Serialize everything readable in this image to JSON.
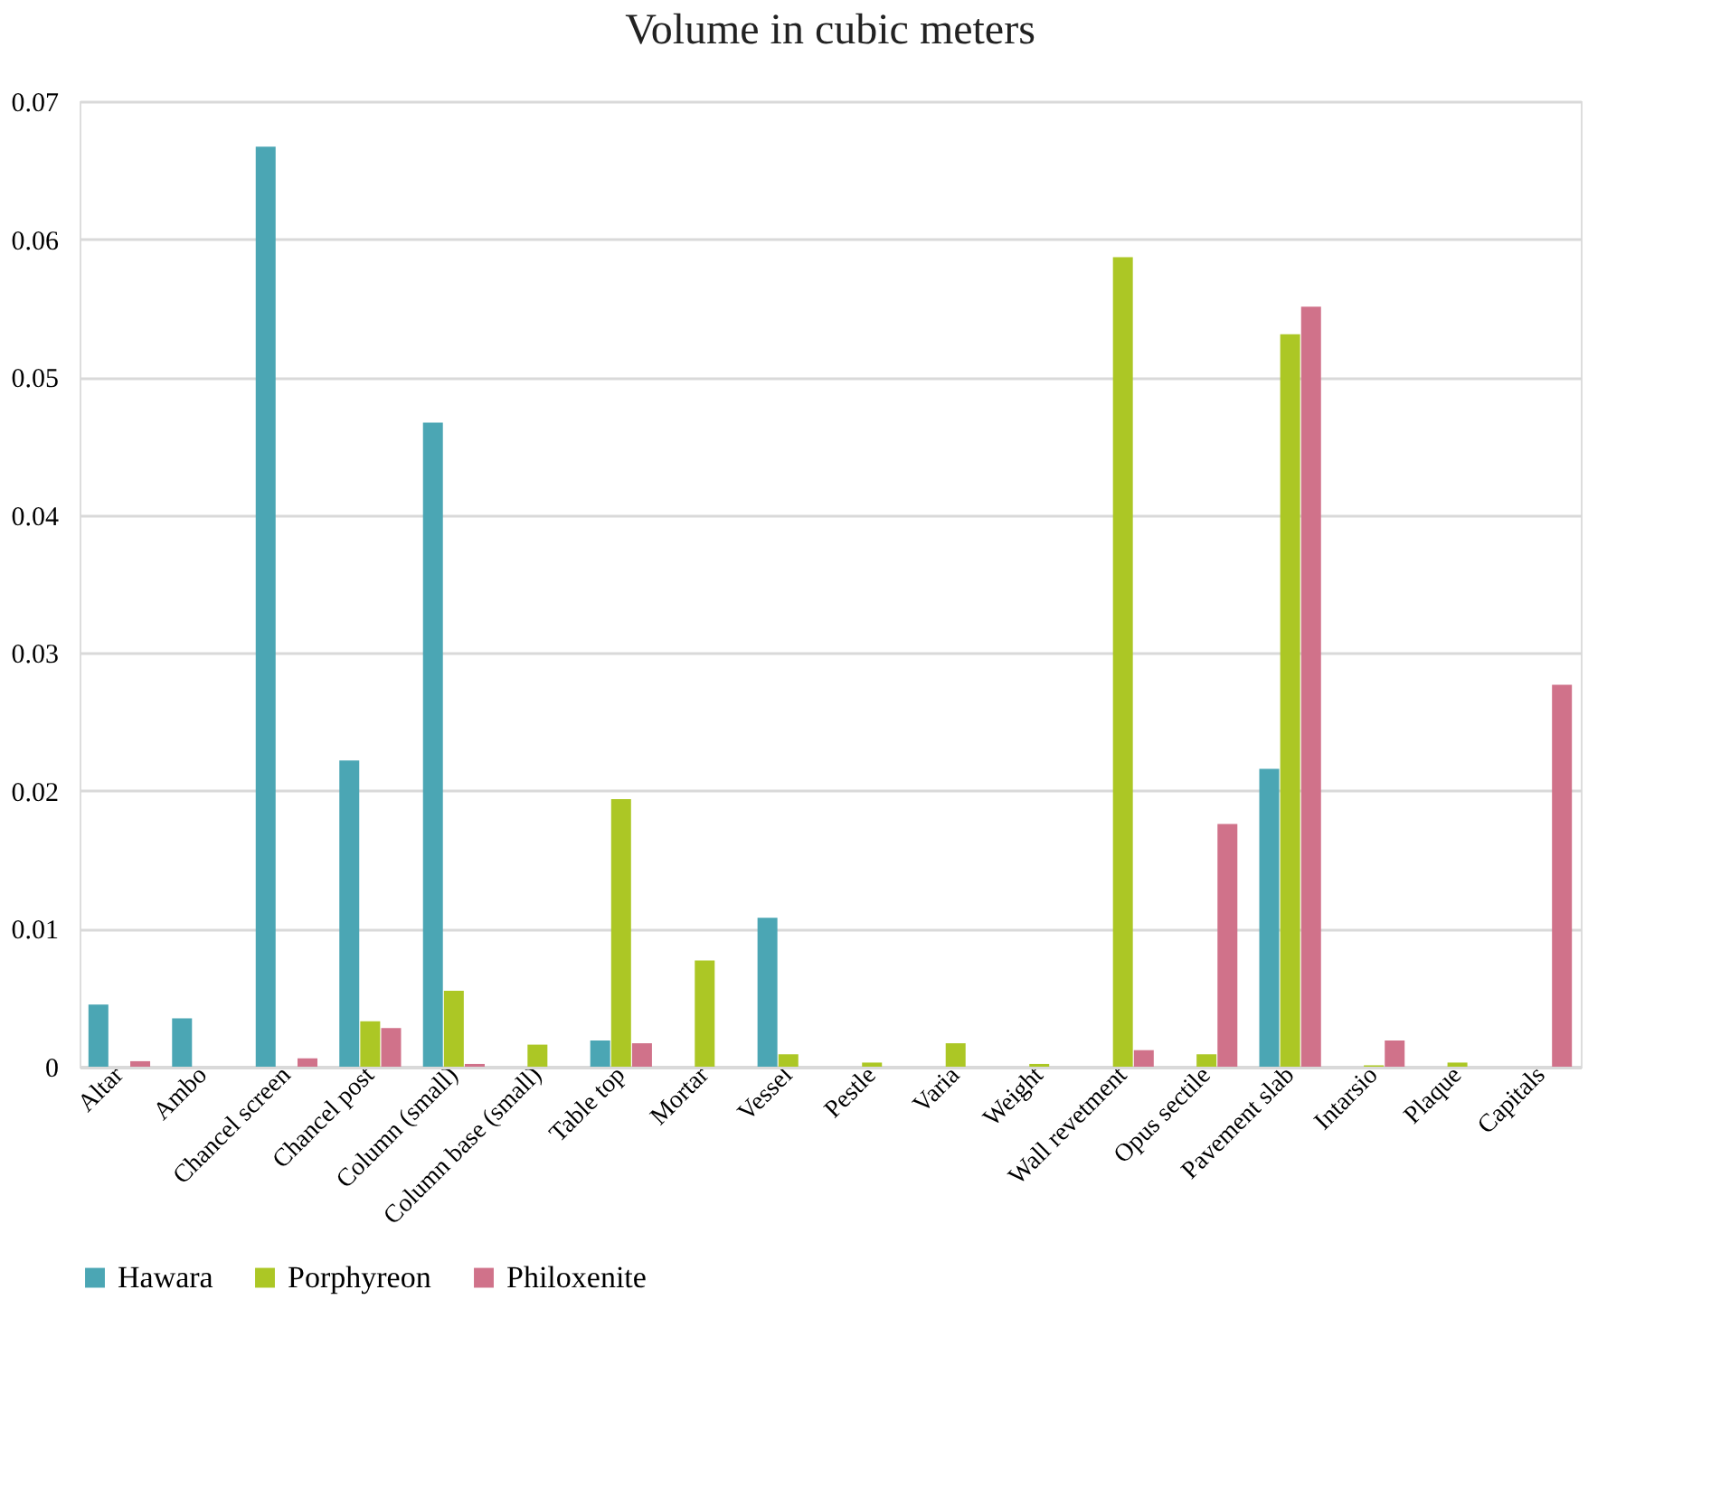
{
  "chart_data": {
    "type": "bar",
    "title": "Volume in cubic meters",
    "categories": [
      "Altar",
      "Ambo",
      "Chancel screen",
      "Chancel post",
      "Column (small)",
      "Column base (small)",
      "Table top",
      "Mortar",
      "Vessel",
      "Pestle",
      "Varia",
      "Weight",
      "Wall revetment",
      "Opus sectile",
      "Pavement slab",
      "Intarsio",
      "Plaque",
      "Capitals"
    ],
    "series": [
      {
        "name": "Hawara",
        "color": "#4ba6b4",
        "values": [
          0.0045,
          0.0035,
          0.0667,
          0.0222,
          0.0467,
          null,
          0.0019,
          null,
          0.0108,
          null,
          null,
          null,
          null,
          null,
          0.0216,
          null,
          null,
          null
        ]
      },
      {
        "name": "Porphyreon",
        "color": "#acc725",
        "values": [
          null,
          null,
          null,
          0.0033,
          0.0055,
          0.0016,
          0.0194,
          0.0077,
          0.0009,
          0.0003,
          0.0017,
          0.0002,
          0.0587,
          0.0009,
          0.0531,
          0.0001,
          0.0003,
          null
        ]
      },
      {
        "name": "Philoxenite",
        "color": "#d0728a",
        "values": [
          0.0004,
          null,
          0.0006,
          0.0028,
          0.0002,
          null,
          0.0017,
          null,
          null,
          null,
          null,
          null,
          0.0012,
          0.0176,
          0.0551,
          0.0019,
          null,
          0.0277
        ]
      }
    ],
    "ylim": [
      0,
      0.07
    ],
    "yticks": [
      0,
      0.01,
      0.02,
      0.03,
      0.04,
      0.05,
      0.06,
      0.07
    ],
    "grid": "y",
    "legend": "bottom"
  }
}
